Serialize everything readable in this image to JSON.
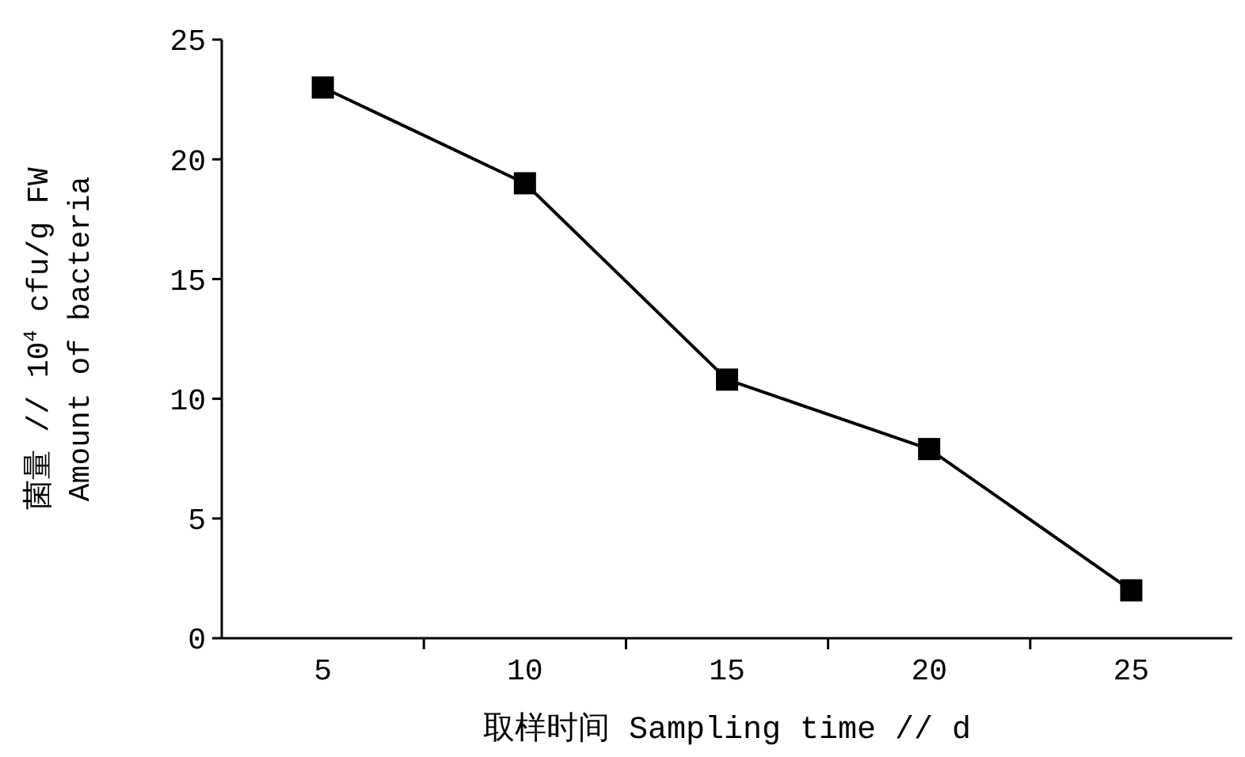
{
  "chart_data": {
    "type": "line",
    "xlabel": "取样时间 Sampling time // d",
    "ylabel": "菌量 // 10$^{4}$ cfu/g FW\nAmount of bacteria",
    "categories": [
      "5",
      "10",
      "15",
      "20",
      "25"
    ],
    "series": [
      {
        "color": "#000000",
        "values": [
          23,
          19,
          10.8,
          7.9,
          2
        ]
      }
    ],
    "ylim": [
      0,
      25
    ],
    "yticks": [
      0,
      5,
      10,
      15,
      20,
      25
    ],
    "marker": "square",
    "line_style": "solid"
  }
}
